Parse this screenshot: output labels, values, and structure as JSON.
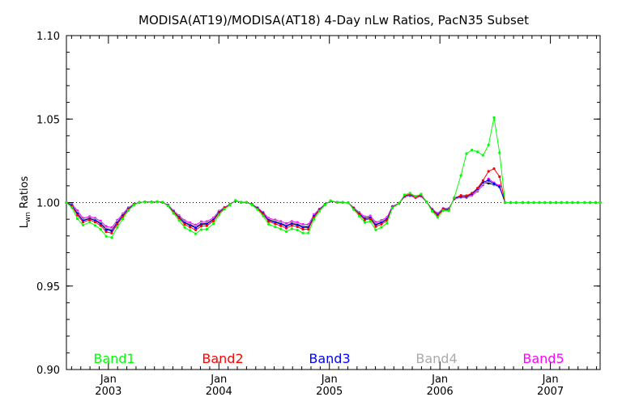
{
  "chart_data": {
    "type": "line",
    "title": "MODISA(AT19)/MODISA(AT18) 4-Day nLw Ratios, PacN35 Subset",
    "ylabel_main": "L",
    "ylabel_sub": "wn",
    "ylabel_rest": " Ratios",
    "xlabel": "",
    "ylim": [
      0.9,
      1.1
    ],
    "xlim": [
      2002.62,
      2007.45
    ],
    "y_ticks": [
      0.9,
      0.95,
      1.0,
      1.05,
      1.1
    ],
    "y_tick_labels": [
      "0.90",
      "0.95",
      "1.00",
      "1.05",
      "1.10"
    ],
    "x_major_ticks": [
      2003.0,
      2004.0,
      2005.0,
      2006.0,
      2007.0
    ],
    "x_tick_month_label": "Jan",
    "x_tick_year_labels": [
      "2003",
      "2004",
      "2005",
      "2006",
      "2007"
    ],
    "reference_line": 1.0,
    "grid": false,
    "legend_placement": "bottom-inside",
    "x": [
      2002.62,
      2002.67,
      2002.72,
      2002.77,
      2002.83,
      2002.88,
      2002.93,
      2002.98,
      2003.03,
      2003.08,
      2003.13,
      2003.18,
      2003.23,
      2003.28,
      2003.33,
      2003.39,
      2003.44,
      2003.49,
      2003.54,
      2003.59,
      2003.64,
      2003.69,
      2003.74,
      2003.79,
      2003.84,
      2003.89,
      2003.95,
      2004.0,
      2004.05,
      2004.1,
      2004.15,
      2004.2,
      2004.25,
      2004.3,
      2004.35,
      2004.4,
      2004.45,
      2004.51,
      2004.56,
      2004.61,
      2004.66,
      2004.71,
      2004.76,
      2004.81,
      2004.86,
      2004.91,
      2004.96,
      2005.01,
      2005.07,
      2005.12,
      2005.17,
      2005.22,
      2005.27,
      2005.32,
      2005.37,
      2005.42,
      2005.47,
      2005.52,
      2005.57,
      2005.63,
      2005.68,
      2005.73,
      2005.78,
      2005.83,
      2005.88,
      2005.93,
      2005.98,
      2006.03,
      2006.08,
      2006.13,
      2006.19,
      2006.24,
      2006.29,
      2006.34,
      2006.39,
      2006.44,
      2006.49,
      2006.54,
      2006.59,
      2006.64,
      2006.69,
      2006.75,
      2006.8,
      2006.85,
      2006.9,
      2006.95,
      2007.0,
      2007.05,
      2007.1,
      2007.15,
      2007.2,
      2007.25,
      2007.31,
      2007.36,
      2007.41,
      2007.45
    ],
    "series": [
      {
        "name": "Band1",
        "color": "#00ff00",
        "values": [
          1.0,
          0.9969,
          0.9903,
          0.9865,
          0.9882,
          0.9863,
          0.9839,
          0.9798,
          0.9791,
          0.9852,
          0.9901,
          0.9952,
          0.9985,
          1.0001,
          1.0004,
          1.0003,
          1.0005,
          1.0002,
          0.9979,
          0.9935,
          0.9893,
          0.9851,
          0.9833,
          0.9813,
          0.9838,
          0.984,
          0.9873,
          0.9926,
          0.9961,
          0.9985,
          1.0013,
          1.0002,
          1.0001,
          0.9986,
          0.9958,
          0.992,
          0.987,
          0.9854,
          0.9842,
          0.9826,
          0.9843,
          0.9835,
          0.9818,
          0.9818,
          0.99,
          0.9948,
          0.9986,
          1.0011,
          1.0002,
          1.0001,
          0.9999,
          0.9958,
          0.9919,
          0.9881,
          0.9888,
          0.9836,
          0.9852,
          0.9876,
          0.9968,
          0.9994,
          1.0047,
          1.0056,
          1.0038,
          1.0051,
          1.0003,
          0.9948,
          0.9911,
          0.9952,
          0.995,
          1.0031,
          1.0162,
          1.0293,
          1.0315,
          1.0304,
          1.0283,
          1.0345,
          1.0509,
          1.0298,
          1.0,
          1.0,
          1.0,
          1.0,
          1.0,
          1.0,
          1.0,
          1.0,
          1.0,
          1.0,
          1.0,
          1.0,
          1.0,
          1.0,
          1.0,
          1.0,
          1.0,
          1.0
        ]
      },
      {
        "name": "Band2",
        "color": "#ff0000",
        "values": [
          1.0,
          0.9979,
          0.9924,
          0.9883,
          0.9896,
          0.9883,
          0.9862,
          0.9824,
          0.9817,
          0.987,
          0.9915,
          0.9959,
          0.9988,
          1.0001,
          1.0004,
          1.0003,
          1.0005,
          1.0002,
          0.9982,
          0.9943,
          0.9906,
          0.9869,
          0.9853,
          0.9836,
          0.9859,
          0.9861,
          0.9889,
          0.9936,
          0.9966,
          0.9987,
          1.0012,
          1.0002,
          1.0001,
          0.9988,
          0.9963,
          0.993,
          0.9886,
          0.9872,
          0.9861,
          0.9847,
          0.9862,
          0.9855,
          0.984,
          0.984,
          0.9912,
          0.9954,
          0.9988,
          1.001,
          1.0002,
          1.0001,
          0.9999,
          0.9964,
          0.9929,
          0.9896,
          0.9902,
          0.9856,
          0.987,
          0.9892,
          0.9972,
          0.9995,
          1.0042,
          1.0049,
          1.0034,
          1.0045,
          1.0003,
          0.9954,
          0.9922,
          0.9958,
          0.9956,
          1.0027,
          1.0043,
          1.0041,
          1.0056,
          1.0086,
          1.0132,
          1.0187,
          1.0203,
          1.0155,
          1.0,
          1.0,
          1.0,
          1.0,
          1.0,
          1.0,
          1.0,
          1.0,
          1.0,
          1.0,
          1.0,
          1.0,
          1.0,
          1.0,
          1.0,
          1.0,
          1.0,
          1.0
        ]
      },
      {
        "name": "Band3",
        "color": "#0000ff",
        "values": [
          1.0,
          0.9984,
          0.9934,
          0.9891,
          0.9903,
          0.9892,
          0.9872,
          0.9837,
          0.983,
          0.9879,
          0.9922,
          0.9963,
          0.9989,
          1.0001,
          1.0004,
          1.0003,
          1.0005,
          1.0002,
          0.9983,
          0.9946,
          0.9912,
          0.9878,
          0.9863,
          0.9848,
          0.9869,
          0.9871,
          0.9897,
          0.9941,
          0.9968,
          0.9988,
          1.0011,
          1.0002,
          1.0001,
          0.9989,
          0.9966,
          0.9935,
          0.9894,
          0.9881,
          0.9871,
          0.9858,
          0.9872,
          0.9865,
          0.9851,
          0.9851,
          0.9918,
          0.9957,
          0.9989,
          1.0009,
          1.0002,
          1.0001,
          0.9999,
          0.9966,
          0.9933,
          0.9903,
          0.9909,
          0.9866,
          0.9879,
          0.99,
          0.9974,
          0.9995,
          1.0039,
          1.0046,
          1.0032,
          1.0042,
          1.0003,
          0.9957,
          0.9928,
          0.9961,
          0.9959,
          1.0025,
          1.0036,
          1.0036,
          1.0051,
          1.0081,
          1.0122,
          1.0133,
          1.0112,
          1.0095,
          1.0,
          1.0,
          1.0,
          1.0,
          1.0,
          1.0,
          1.0,
          1.0,
          1.0,
          1.0,
          1.0,
          1.0,
          1.0,
          1.0,
          1.0,
          1.0,
          1.0,
          1.0
        ]
      },
      {
        "name": "Band4",
        "color": "#aaaaaa",
        "values": [
          1.0,
          0.9988,
          0.9943,
          0.9898,
          0.9909,
          0.9899,
          0.9881,
          0.9847,
          0.984,
          0.9887,
          0.9928,
          0.9966,
          0.999,
          1.0001,
          1.0004,
          1.0003,
          1.0005,
          1.0002,
          0.9985,
          0.9949,
          0.9917,
          0.9885,
          0.9871,
          0.9857,
          0.9877,
          0.9879,
          0.9903,
          0.9945,
          0.997,
          0.9988,
          1.0011,
          1.0002,
          1.0001,
          0.999,
          0.9968,
          0.9938,
          0.9901,
          0.9889,
          0.9879,
          0.9866,
          0.9879,
          0.9873,
          0.986,
          0.986,
          0.9923,
          0.9959,
          0.9989,
          1.0008,
          1.0002,
          1.0001,
          0.9999,
          0.9968,
          0.9937,
          0.9909,
          0.9914,
          0.9874,
          0.9886,
          0.9906,
          0.9975,
          0.9996,
          1.0036,
          1.0043,
          1.003,
          1.004,
          1.0003,
          0.996,
          0.9932,
          0.9964,
          0.9962,
          1.0023,
          1.0033,
          1.0032,
          1.0046,
          1.0074,
          1.0113,
          1.0125,
          1.0105,
          1.0091,
          1.0,
          1.0,
          1.0,
          1.0,
          1.0,
          1.0,
          1.0,
          1.0,
          1.0,
          1.0,
          1.0,
          1.0,
          1.0,
          1.0,
          1.0,
          1.0,
          1.0,
          1.0
        ]
      },
      {
        "name": "Band5",
        "color": "#ff00ff",
        "values": [
          1.0,
          0.9991,
          0.9951,
          0.9906,
          0.9916,
          0.9906,
          0.9889,
          0.9857,
          0.985,
          0.9894,
          0.9933,
          0.9969,
          0.9991,
          1.0001,
          1.0004,
          1.0003,
          1.0005,
          1.0002,
          0.9986,
          0.9952,
          0.9922,
          0.9892,
          0.9879,
          0.9866,
          0.9885,
          0.9886,
          0.9909,
          0.9949,
          0.9972,
          0.9989,
          1.001,
          1.0002,
          1.0001,
          0.999,
          0.997,
          0.9942,
          0.9907,
          0.9896,
          0.9887,
          0.9875,
          0.9887,
          0.9881,
          0.9869,
          0.9869,
          0.9928,
          0.9962,
          0.999,
          1.0008,
          1.0002,
          1.0001,
          0.9999,
          0.997,
          0.9941,
          0.9915,
          0.992,
          0.9882,
          0.9893,
          0.9912,
          0.9977,
          0.9996,
          1.0034,
          1.004,
          1.0028,
          1.0037,
          1.0003,
          0.9962,
          0.9936,
          0.9966,
          0.9965,
          1.0021,
          1.0031,
          1.0029,
          1.0042,
          1.0068,
          1.0105,
          1.0142,
          1.0118,
          1.0101,
          1.0,
          1.0,
          1.0,
          1.0,
          1.0,
          1.0,
          1.0,
          1.0,
          1.0,
          1.0,
          1.0,
          1.0,
          1.0,
          1.0,
          1.0,
          1.0,
          1.0,
          1.0
        ]
      },
      {
        "name": "",
        "color": "#000000",
        "values": [
          1.0,
          0.9986,
          0.9938,
          0.9895,
          0.9906,
          0.9896,
          0.9877,
          0.9842,
          0.9835,
          0.9883,
          0.9925,
          0.9964,
          0.999,
          1.0001,
          1.0004,
          1.0003,
          1.0005,
          1.0002,
          0.9984,
          0.9948,
          0.9914,
          0.9881,
          0.9867,
          0.9852,
          0.9873,
          0.9875,
          0.99,
          0.9943,
          0.9969,
          0.9988,
          1.0011,
          1.0002,
          1.0001,
          0.999,
          0.9967,
          0.9937,
          0.9897,
          0.9885,
          0.9875,
          0.9862,
          0.9876,
          0.9869,
          0.9856,
          0.9856,
          0.992,
          0.9958,
          0.9989,
          1.0009,
          1.0002,
          1.0001,
          0.9999,
          0.9967,
          0.9935,
          0.9906,
          0.9911,
          0.987,
          0.9882,
          0.9903,
          0.9974,
          0.9995,
          1.0038,
          1.0044,
          1.0031,
          1.0041,
          1.0003,
          0.9958,
          0.993,
          0.9962,
          0.996,
          1.0024,
          1.0034,
          1.0034,
          1.0049,
          1.0078,
          1.0117,
          1.0116,
          1.0106,
          1.0094,
          1.0,
          1.0,
          1.0,
          1.0,
          1.0,
          1.0,
          1.0,
          1.0,
          1.0,
          1.0,
          1.0,
          1.0,
          1.0,
          1.0,
          1.0,
          1.0,
          1.0,
          1.0
        ]
      }
    ]
  }
}
